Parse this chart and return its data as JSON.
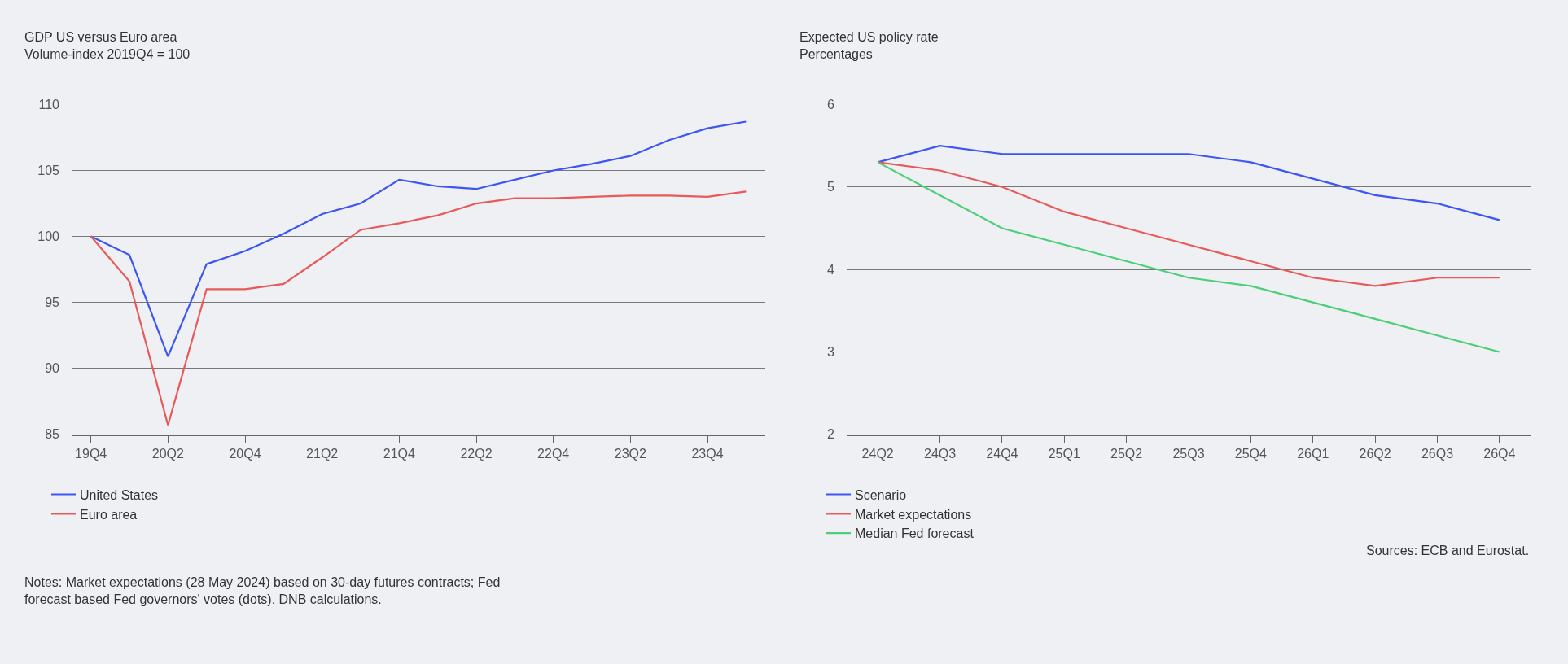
{
  "chart_data": [
    {
      "type": "line",
      "title": "GDP US versus Euro area",
      "subtitle": "Volume-index 2019Q4 = 100",
      "categories": [
        "19Q4",
        null,
        "20Q2",
        null,
        "20Q4",
        null,
        "21Q2",
        null,
        "21Q4",
        null,
        "22Q2",
        null,
        "22Q4",
        null,
        "23Q2",
        null,
        "23Q4",
        null
      ],
      "series": [
        {
          "name": "United States",
          "color": "#3d55f5",
          "values": [
            100,
            98.6,
            90.9,
            97.9,
            98.9,
            100.2,
            101.7,
            102.5,
            104.3,
            103.8,
            103.6,
            104.3,
            105.0,
            105.5,
            106.1,
            107.3,
            108.2,
            108.7
          ]
        },
        {
          "name": "Euro area",
          "color": "#e85a5a",
          "values": [
            100,
            96.6,
            85.7,
            96.0,
            96.0,
            96.4,
            98.4,
            100.5,
            101.0,
            101.6,
            102.5,
            102.9,
            102.9,
            103.0,
            103.1,
            103.1,
            103.0,
            103.4
          ]
        }
      ],
      "ylim": [
        85,
        110
      ],
      "yticks": [
        85,
        90,
        95,
        100,
        105,
        110
      ],
      "grid": "y",
      "legend": "bottom left",
      "annotations": [
        "Notes: Market expectations (28 May 2024) based on 30-day futures contracts; Fed\nforecast based Fed governors' votes (dots). DNB calculations."
      ]
    },
    {
      "type": "line",
      "title": "Expected US policy rate",
      "subtitle": "Percentages",
      "categories": [
        "24Q2",
        "24Q3",
        "24Q4",
        "25Q1",
        "25Q2",
        "25Q3",
        "25Q4",
        "26Q1",
        "26Q2",
        "26Q3",
        "26Q4"
      ],
      "series": [
        {
          "name": "Scenario",
          "color": "#3d55f5",
          "values": [
            5.3,
            5.5,
            5.4,
            5.4,
            5.4,
            5.4,
            5.3,
            5.1,
            4.9,
            4.8,
            4.6
          ]
        },
        {
          "name": "Market expectations",
          "color": "#e85a5a",
          "values": [
            5.3,
            5.2,
            5.0,
            4.7,
            4.5,
            4.3,
            4.1,
            3.9,
            3.8,
            3.9,
            3.9
          ]
        },
        {
          "name": "Median Fed forecast",
          "color": "#4ccf78",
          "values": [
            5.3,
            4.9,
            4.5,
            4.3,
            4.1,
            3.9,
            3.8,
            3.6,
            3.4,
            3.2,
            3.0
          ]
        }
      ],
      "ylim": [
        2,
        6
      ],
      "yticks": [
        2,
        3,
        4,
        5,
        6
      ],
      "grid": "y",
      "legend": "bottom left",
      "annotations": [
        "Sources: ECB and Eurostat."
      ]
    }
  ]
}
